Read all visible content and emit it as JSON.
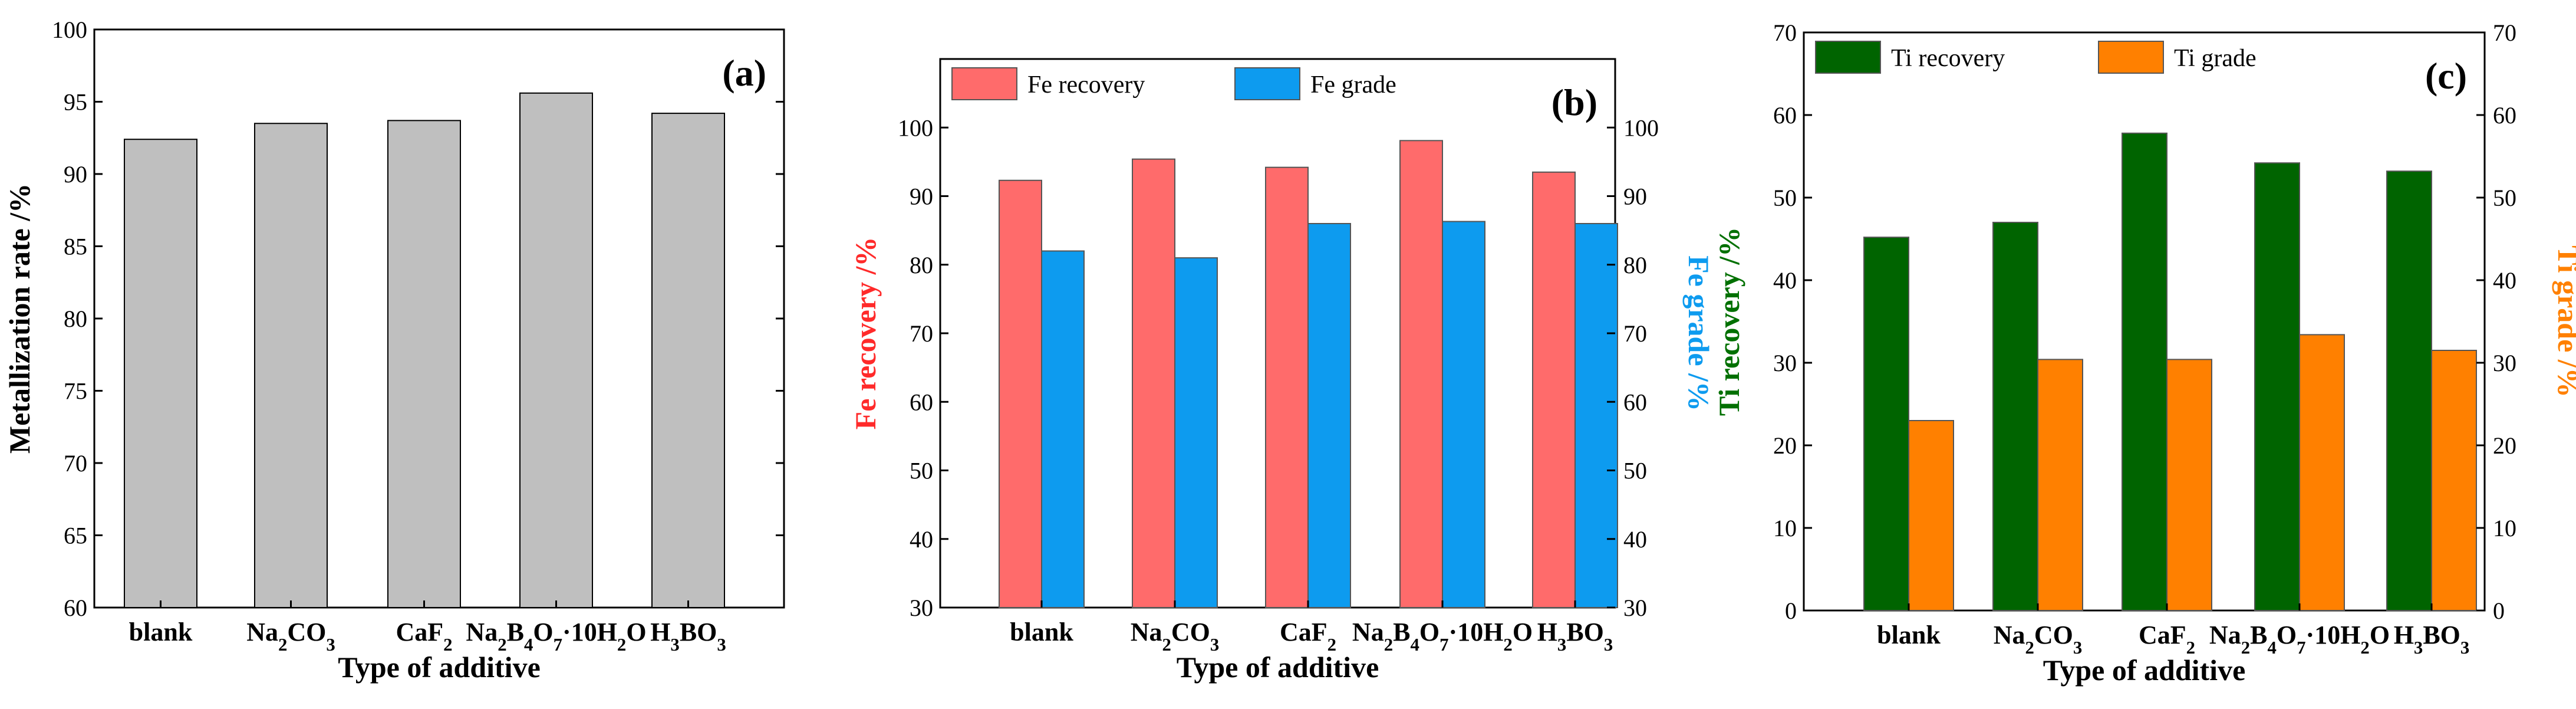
{
  "chart_data": [
    {
      "type": "bar",
      "panel_label": "(a)",
      "categories": [
        "blank",
        "Na2CO3",
        "CaF2",
        "Na2B4O7·10H2O",
        "H3BO3"
      ],
      "series": [
        {
          "values": [
            92.4,
            93.5,
            93.7,
            95.6,
            94.2
          ],
          "color": "#bfbfbf"
        }
      ],
      "xlabel": "Type of additive",
      "ylabel": "Metallization rate /%",
      "ylim": [
        60,
        100
      ],
      "yticks": [
        60,
        65,
        70,
        75,
        80,
        85,
        90,
        95,
        100
      ],
      "grid": false
    },
    {
      "type": "bar",
      "panel_label": "(b)",
      "categories": [
        "blank",
        "Na2CO3",
        "CaF2",
        "Na2B4O7·10H2O",
        "H3BO3"
      ],
      "series": [
        {
          "name": "Fe recovery",
          "axis": "left",
          "values": [
            92.3,
            95.4,
            94.2,
            98.1,
            93.5
          ],
          "color": "#ff6b6b"
        },
        {
          "name": "Fe grade",
          "axis": "right",
          "values": [
            82.0,
            81.0,
            86.0,
            86.3,
            86.0
          ],
          "color": "#0d9bef"
        }
      ],
      "xlabel": "Type of additive",
      "ylabel": "Fe recovery /%",
      "ylabel_color": "#ff2a2a",
      "ylabel_right": "Fe grade /%",
      "ylabel_right_color": "#0d9bef",
      "ylim": [
        30,
        110
      ],
      "ylim_right": [
        30,
        110
      ],
      "yticks": [
        30,
        40,
        50,
        60,
        70,
        80,
        90,
        100
      ],
      "legend_position": "top",
      "grid": false
    },
    {
      "type": "bar",
      "panel_label": "(c)",
      "categories": [
        "blank",
        "Na2CO3",
        "CaF2",
        "Na2B4O7·10H2O",
        "H3BO3"
      ],
      "series": [
        {
          "name": "Ti recovery",
          "axis": "left",
          "values": [
            45.2,
            47.0,
            57.8,
            54.2,
            53.2
          ],
          "color": "#006400"
        },
        {
          "name": "Ti grade",
          "axis": "right",
          "values": [
            23.0,
            30.4,
            30.4,
            33.4,
            31.5
          ],
          "color": "#ff8000"
        }
      ],
      "xlabel": "Type of additive",
      "ylabel": "Ti recovery /%",
      "ylabel_color": "#007000",
      "ylabel_right": "Ti grade /%",
      "ylabel_right_color": "#ff8000",
      "ylim": [
        0,
        70
      ],
      "ylim_right": [
        0,
        70
      ],
      "yticks": [
        0,
        10,
        20,
        30,
        40,
        50,
        60,
        70
      ],
      "legend_position": "top",
      "grid": false
    }
  ]
}
